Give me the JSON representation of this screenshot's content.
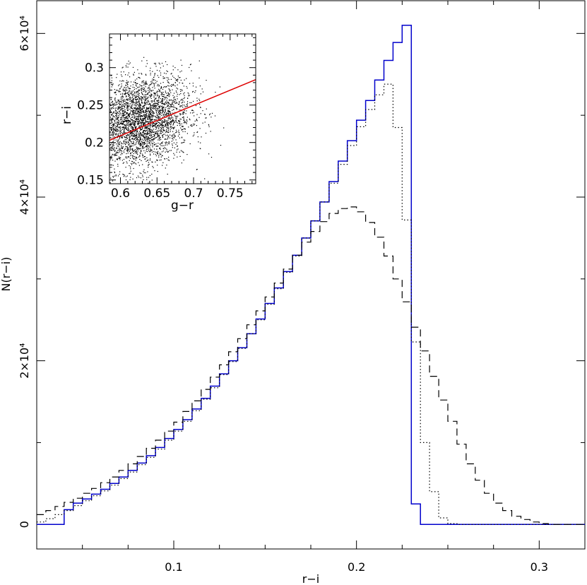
{
  "chart_data": [
    {
      "type": "histogram",
      "xlabel": "r−i",
      "ylabel": "N(r−i)",
      "xlim": [
        0.025,
        0.325
      ],
      "ylim": [
        -3000,
        64000
      ],
      "x_ticks": [
        {
          "value": 0.1,
          "label": "0.1"
        },
        {
          "value": 0.2,
          "label": "0.2"
        },
        {
          "value": 0.3,
          "label": "0.3"
        }
      ],
      "y_ticks": [
        {
          "value": 0,
          "label": "0"
        },
        {
          "value": 20000,
          "label": "2×10⁴"
        },
        {
          "value": 40000,
          "label": "4×10⁴"
        },
        {
          "value": 60000,
          "label": "6×10⁴"
        }
      ],
      "bin_width": 0.005,
      "series": [
        {
          "style": "solid",
          "color": "#0000cc",
          "bins": [
            [
              0.025,
              0
            ],
            [
              0.03,
              0
            ],
            [
              0.035,
              0
            ],
            [
              0.04,
              1800
            ],
            [
              0.045,
              2600
            ],
            [
              0.05,
              3100
            ],
            [
              0.055,
              3700
            ],
            [
              0.06,
              4300
            ],
            [
              0.065,
              5000
            ],
            [
              0.07,
              5800
            ],
            [
              0.075,
              6600
            ],
            [
              0.08,
              7500
            ],
            [
              0.085,
              8400
            ],
            [
              0.09,
              9400
            ],
            [
              0.095,
              10500
            ],
            [
              0.1,
              11600
            ],
            [
              0.105,
              12800
            ],
            [
              0.11,
              14100
            ],
            [
              0.115,
              15400
            ],
            [
              0.12,
              16900
            ],
            [
              0.125,
              18400
            ],
            [
              0.13,
              20000
            ],
            [
              0.135,
              21600
            ],
            [
              0.14,
              23300
            ],
            [
              0.145,
              25100
            ],
            [
              0.15,
              27000
            ],
            [
              0.155,
              28900
            ],
            [
              0.16,
              30900
            ],
            [
              0.165,
              32900
            ],
            [
              0.17,
              35000
            ],
            [
              0.175,
              37100
            ],
            [
              0.18,
              39400
            ],
            [
              0.185,
              41900
            ],
            [
              0.19,
              44400
            ],
            [
              0.195,
              46900
            ],
            [
              0.2,
              49400
            ],
            [
              0.205,
              51800
            ],
            [
              0.21,
              54300
            ],
            [
              0.215,
              56700
            ],
            [
              0.22,
              58900
            ],
            [
              0.225,
              61000
            ],
            [
              0.23,
              2500
            ],
            [
              0.235,
              0
            ],
            [
              0.24,
              0
            ],
            [
              0.245,
              0
            ],
            [
              0.25,
              0
            ],
            [
              0.255,
              0
            ],
            [
              0.26,
              0
            ],
            [
              0.265,
              0
            ],
            [
              0.27,
              0
            ],
            [
              0.275,
              0
            ],
            [
              0.28,
              0
            ],
            [
              0.285,
              0
            ],
            [
              0.29,
              0
            ],
            [
              0.295,
              0
            ],
            [
              0.3,
              0
            ],
            [
              0.305,
              0
            ],
            [
              0.31,
              0
            ],
            [
              0.315,
              0
            ],
            [
              0.32,
              0
            ]
          ]
        },
        {
          "style": "dotted",
          "color": "#000000",
          "bins": [
            [
              0.025,
              300
            ],
            [
              0.03,
              700
            ],
            [
              0.035,
              1200
            ],
            [
              0.04,
              1700
            ],
            [
              0.045,
              2300
            ],
            [
              0.05,
              2900
            ],
            [
              0.055,
              3500
            ],
            [
              0.06,
              4100
            ],
            [
              0.065,
              4800
            ],
            [
              0.07,
              5600
            ],
            [
              0.075,
              6400
            ],
            [
              0.08,
              7300
            ],
            [
              0.085,
              8200
            ],
            [
              0.09,
              9200
            ],
            [
              0.095,
              10300
            ],
            [
              0.1,
              11400
            ],
            [
              0.105,
              12600
            ],
            [
              0.11,
              13900
            ],
            [
              0.115,
              15300
            ],
            [
              0.12,
              16700
            ],
            [
              0.125,
              18300
            ],
            [
              0.13,
              19900
            ],
            [
              0.135,
              21500
            ],
            [
              0.14,
              23300
            ],
            [
              0.145,
              25000
            ],
            [
              0.15,
              26900
            ],
            [
              0.155,
              28800
            ],
            [
              0.16,
              30800
            ],
            [
              0.165,
              32800
            ],
            [
              0.17,
              35000
            ],
            [
              0.175,
              37100
            ],
            [
              0.18,
              39400
            ],
            [
              0.185,
              41700
            ],
            [
              0.19,
              44000
            ],
            [
              0.195,
              46300
            ],
            [
              0.2,
              48600
            ],
            [
              0.205,
              50700
            ],
            [
              0.21,
              52500
            ],
            [
              0.215,
              53800
            ],
            [
              0.22,
              48500
            ],
            [
              0.225,
              37200
            ],
            [
              0.23,
              22300
            ],
            [
              0.235,
              10000
            ],
            [
              0.24,
              4000
            ],
            [
              0.245,
              800
            ],
            [
              0.25,
              100
            ],
            [
              0.255,
              0
            ],
            [
              0.26,
              0
            ],
            [
              0.265,
              0
            ],
            [
              0.27,
              0
            ],
            [
              0.275,
              0
            ],
            [
              0.28,
              0
            ],
            [
              0.285,
              0
            ],
            [
              0.29,
              0
            ],
            [
              0.295,
              0
            ],
            [
              0.3,
              0
            ],
            [
              0.305,
              0
            ],
            [
              0.31,
              0
            ],
            [
              0.315,
              0
            ],
            [
              0.32,
              0
            ]
          ]
        },
        {
          "style": "dashed",
          "color": "#000000",
          "bins": [
            [
              0.025,
              1200
            ],
            [
              0.03,
              1700
            ],
            [
              0.035,
              2200
            ],
            [
              0.04,
              2700
            ],
            [
              0.045,
              3200
            ],
            [
              0.05,
              3800
            ],
            [
              0.055,
              4400
            ],
            [
              0.06,
              5100
            ],
            [
              0.065,
              5800
            ],
            [
              0.07,
              6600
            ],
            [
              0.075,
              7400
            ],
            [
              0.08,
              8300
            ],
            [
              0.085,
              9300
            ],
            [
              0.09,
              10300
            ],
            [
              0.095,
              11400
            ],
            [
              0.1,
              12500
            ],
            [
              0.105,
              13800
            ],
            [
              0.11,
              15100
            ],
            [
              0.115,
              16500
            ],
            [
              0.12,
              18000
            ],
            [
              0.125,
              19500
            ],
            [
              0.13,
              21100
            ],
            [
              0.135,
              22700
            ],
            [
              0.14,
              24400
            ],
            [
              0.145,
              26100
            ],
            [
              0.15,
              27800
            ],
            [
              0.155,
              29500
            ],
            [
              0.16,
              31200
            ],
            [
              0.165,
              32900
            ],
            [
              0.17,
              34500
            ],
            [
              0.175,
              35800
            ],
            [
              0.18,
              37000
            ],
            [
              0.185,
              38000
            ],
            [
              0.19,
              38600
            ],
            [
              0.195,
              38800
            ],
            [
              0.2,
              38200
            ],
            [
              0.205,
              36900
            ],
            [
              0.21,
              35100
            ],
            [
              0.215,
              32800
            ],
            [
              0.22,
              30000
            ],
            [
              0.225,
              27200
            ],
            [
              0.23,
              24100
            ],
            [
              0.235,
              21200
            ],
            [
              0.24,
              18100
            ],
            [
              0.245,
              15200
            ],
            [
              0.25,
              12600
            ],
            [
              0.255,
              9800
            ],
            [
              0.26,
              7400
            ],
            [
              0.265,
              5400
            ],
            [
              0.27,
              3800
            ],
            [
              0.275,
              2600
            ],
            [
              0.28,
              1700
            ],
            [
              0.285,
              1000
            ],
            [
              0.29,
              600
            ],
            [
              0.295,
              300
            ],
            [
              0.3,
              100
            ],
            [
              0.305,
              0
            ],
            [
              0.31,
              0
            ],
            [
              0.315,
              0
            ],
            [
              0.32,
              0
            ]
          ]
        }
      ]
    },
    {
      "type": "scatter",
      "inset": true,
      "xlabel": "g−r",
      "ylabel": "r−i",
      "xlim": [
        0.585,
        0.785
      ],
      "ylim": [
        0.145,
        0.345
      ],
      "x_ticks": [
        {
          "value": 0.6,
          "label": "0.6"
        },
        {
          "value": 0.65,
          "label": "0.65"
        },
        {
          "value": 0.7,
          "label": "0.7"
        },
        {
          "value": 0.75,
          "label": "0.75"
        }
      ],
      "y_ticks": [
        {
          "value": 0.15,
          "label": "0.15"
        },
        {
          "value": 0.2,
          "label": "0.2"
        },
        {
          "value": 0.25,
          "label": "0.25"
        },
        {
          "value": 0.3,
          "label": "0.3"
        }
      ],
      "points_cloud": {
        "center_x": 0.625,
        "center_y": 0.228,
        "sd_x": 0.035,
        "sd_y": 0.031,
        "n": 3500
      },
      "fit_line": {
        "color": "#dd0000",
        "points": [
          [
            0.585,
            0.203
          ],
          [
            0.785,
            0.284
          ]
        ]
      }
    }
  ]
}
